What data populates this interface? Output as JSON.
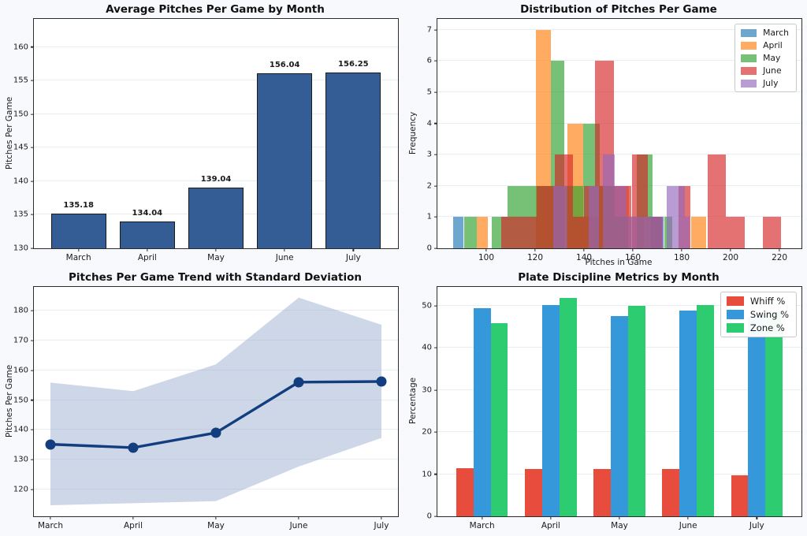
{
  "figure": {
    "background": "#f7f9fc",
    "axes_background": "#ffffff",
    "grid_color": "#e9edf2",
    "spine_color": "#2b2b2b",
    "months": [
      "March",
      "April",
      "May",
      "June",
      "July"
    ]
  },
  "chart_data": [
    {
      "id": "avg-pitches",
      "type": "bar",
      "title": "Average Pitches Per Game by Month",
      "xlabel": "",
      "ylabel": "Pitches Per Game",
      "categories": [
        "March",
        "April",
        "May",
        "June",
        "July"
      ],
      "values": [
        135.18,
        134.04,
        139.04,
        156.04,
        156.25
      ],
      "value_labels": [
        "135.18",
        "134.04",
        "139.04",
        "156.04",
        "156.25"
      ],
      "yticks": [
        130,
        135,
        140,
        145,
        150,
        155,
        160
      ],
      "ylim": [
        130,
        164.2
      ],
      "bar_color": "#335d94",
      "bar_edge_color": "#1a1a1a",
      "grid": "horizontal"
    },
    {
      "id": "distribution",
      "type": "histogram",
      "title": "Distribution of Pitches Per Game",
      "xlabel": "Pitches in Game",
      "ylabel": "Frequency",
      "xlim": [
        80,
        229
      ],
      "xticks": [
        100,
        120,
        140,
        160,
        180,
        200,
        220
      ],
      "yticks": [
        0,
        1,
        2,
        3,
        4,
        5,
        6,
        7
      ],
      "ylim": [
        0,
        7.35
      ],
      "alpha": 0.65,
      "legend_position": "upper right",
      "grid": "horizontal",
      "series": [
        {
          "name": "March",
          "color": "#1f77b4",
          "bars": [
            [
              86.5,
              90.5,
              1
            ],
            [
              167.5,
              172.5,
              1
            ]
          ]
        },
        {
          "name": "April",
          "color": "#ff7f0e",
          "bars": [
            [
              96,
              100.5,
              1
            ],
            [
              120.3,
              126.6,
              7
            ],
            [
              126.6,
              132,
              2
            ],
            [
              133.3,
              139.8,
              4
            ],
            [
              139.8,
              146,
              1
            ],
            [
              146,
              152.5,
              2
            ],
            [
              152.5,
              158.5,
              2
            ],
            [
              158.5,
              164.5,
              1
            ],
            [
              183.8,
              190,
              1
            ]
          ]
        },
        {
          "name": "May",
          "color": "#2ca02c",
          "bars": [
            [
              91,
              96,
              1
            ],
            [
              102.4,
              105,
              1
            ],
            [
              105,
              108.6,
              1
            ],
            [
              108.6,
              114.7,
              2
            ],
            [
              114.7,
              120.9,
              2
            ],
            [
              120.9,
              126.6,
              2
            ],
            [
              126.6,
              131.9,
              6
            ],
            [
              131.9,
              136.5,
              2
            ],
            [
              136.5,
              139.8,
              2
            ],
            [
              139.8,
              146.5,
              4
            ],
            [
              146.5,
              152.5,
              2
            ],
            [
              152.5,
              158,
              1
            ],
            [
              161.5,
              168,
              3
            ],
            [
              168,
              172,
              1
            ],
            [
              173,
              176,
              1
            ]
          ]
        },
        {
          "name": "June",
          "color": "#d62728",
          "bars": [
            [
              106,
              113.4,
              1
            ],
            [
              113.4,
              120.7,
              1
            ],
            [
              120.7,
              128,
              2
            ],
            [
              128,
              135.4,
              3
            ],
            [
              135.4,
              140,
              1
            ],
            [
              140,
              144.6,
              2
            ],
            [
              144.6,
              152.4,
              6
            ],
            [
              152.4,
              159.5,
              2
            ],
            [
              159.5,
              166.1,
              3
            ],
            [
              166.1,
              172,
              1
            ],
            [
              178.7,
              183.5,
              2
            ],
            [
              190.7,
              198.2,
              3
            ],
            [
              198.2,
              205.7,
              1
            ],
            [
              213.1,
              220.6,
              1
            ]
          ]
        },
        {
          "name": "July",
          "color": "#9467bd",
          "bars": [
            [
              127.5,
              133,
              2
            ],
            [
              141.8,
              146,
              2
            ],
            [
              147.7,
              152.6,
              3
            ],
            [
              152.6,
              157.5,
              2
            ],
            [
              157.5,
              163,
              1
            ],
            [
              163,
              167.5,
              1
            ],
            [
              167.5,
              172.5,
              1
            ],
            [
              174,
              181.3,
              2
            ],
            [
              181.3,
              183.3,
              1
            ]
          ]
        }
      ]
    },
    {
      "id": "trend",
      "type": "line",
      "title": "Pitches Per Game Trend with Standard Deviation",
      "xlabel": "",
      "ylabel": "Pitches Per Game",
      "categories": [
        "March",
        "April",
        "May",
        "June",
        "July"
      ],
      "values": [
        135.18,
        134.04,
        139.04,
        156.04,
        156.25
      ],
      "band_upper": [
        155.9,
        153.0,
        162.0,
        184.4,
        175.3
      ],
      "band_lower": [
        114.7,
        115.4,
        116.1,
        127.7,
        137.3
      ],
      "std_approx": [
        20.7,
        19.0,
        22.9,
        28.3,
        19.0
      ],
      "yticks": [
        120,
        130,
        140,
        150,
        160,
        170,
        180
      ],
      "ylim": [
        111,
        188
      ],
      "line_color": "#123e80",
      "band_color": "#93a7c9",
      "band_alpha": 0.45,
      "grid": "horizontal"
    },
    {
      "id": "plate-discipline",
      "type": "grouped_bar",
      "title": "Plate Discipline Metrics by Month",
      "xlabel": "",
      "ylabel": "Percentage",
      "categories": [
        "March",
        "April",
        "May",
        "June",
        "July"
      ],
      "series": [
        {
          "name": "Whiff %",
          "color": "#e74c3c",
          "values": [
            11.4,
            11.3,
            11.3,
            11.3,
            9.8
          ]
        },
        {
          "name": "Swing %",
          "color": "#3498db",
          "values": [
            49.4,
            50.2,
            47.5,
            48.9,
            47.3
          ]
        },
        {
          "name": "Zone %",
          "color": "#2ecc71",
          "values": [
            45.9,
            51.8,
            50.0,
            50.2,
            48.6
          ]
        }
      ],
      "yticks": [
        0,
        10,
        20,
        30,
        40,
        50
      ],
      "ylim": [
        0,
        54.5
      ],
      "legend_position": "upper right",
      "grid": "horizontal"
    }
  ]
}
